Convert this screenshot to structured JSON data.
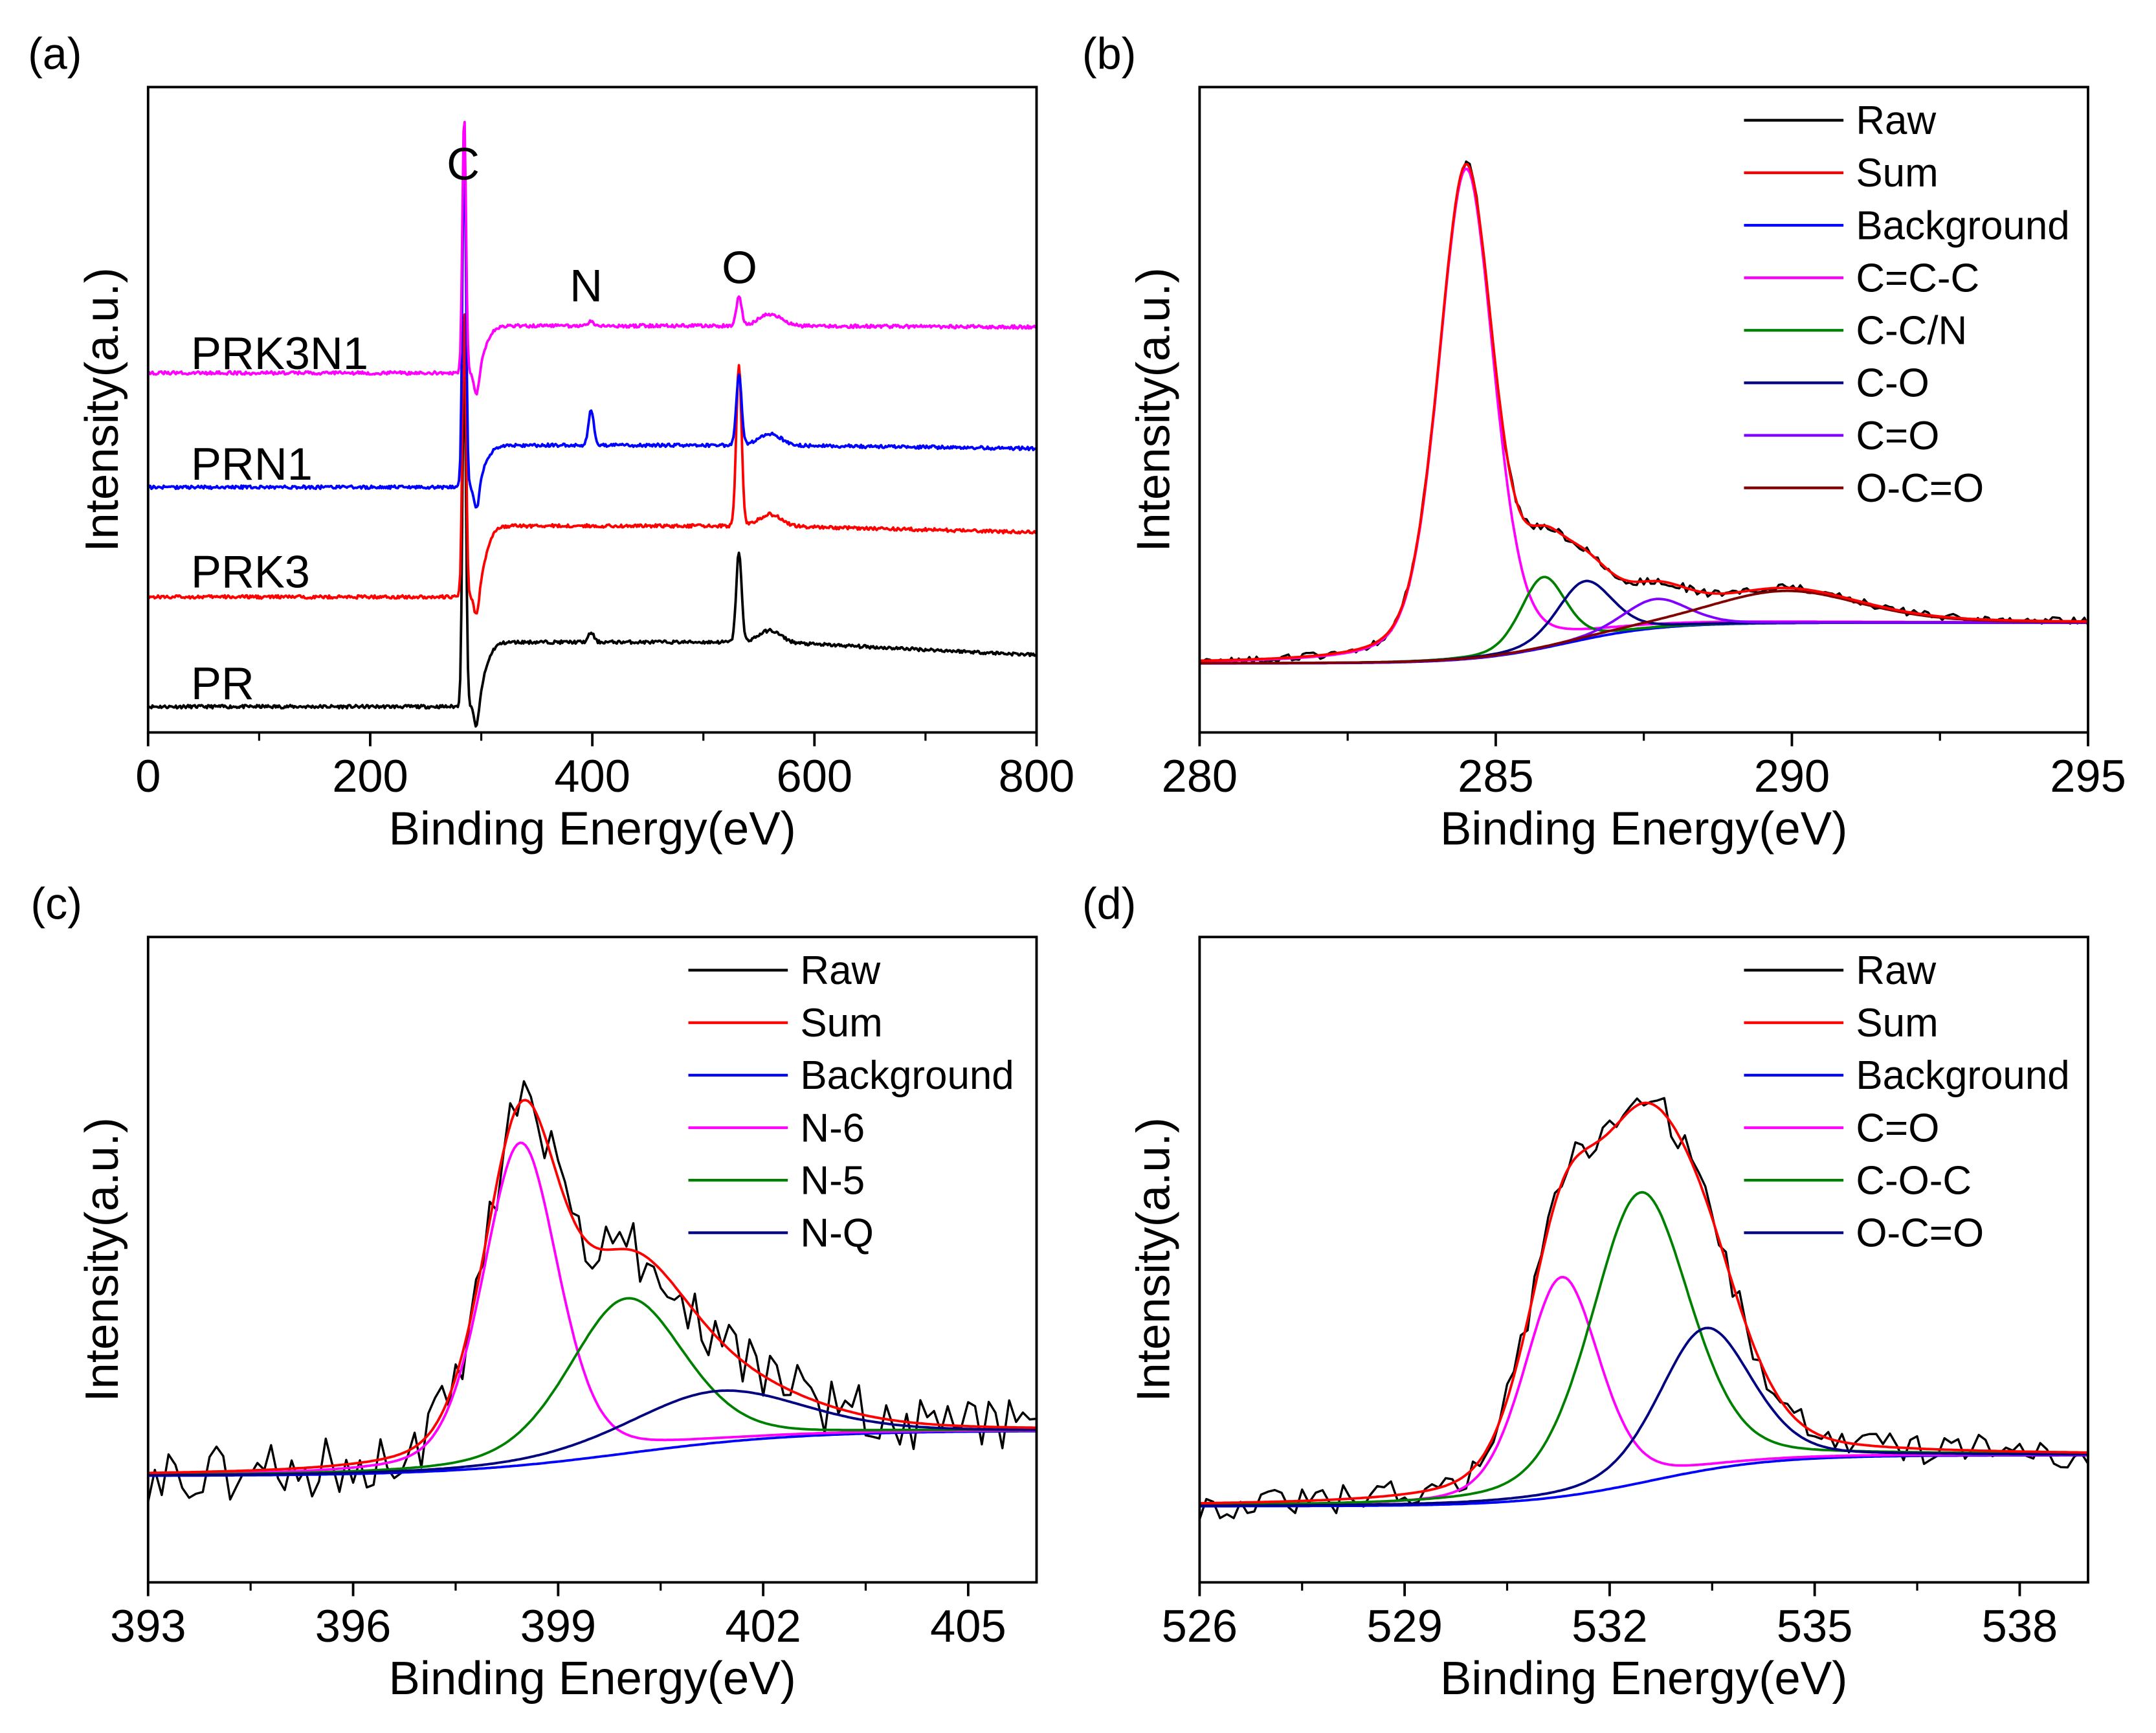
{
  "chart_data": [
    {
      "panel_label": "(a)",
      "type": "line",
      "xlabel": "Binding Energy(eV)",
      "ylabel": "Intensity(a.u.)",
      "xlim": [
        0,
        800
      ],
      "xticks": [
        0,
        200,
        400,
        600,
        800
      ],
      "xminor_step": 100,
      "ylim": [
        0,
        1
      ],
      "grid": false,
      "annotations": [
        {
          "text": "C",
          "x": 284
        },
        {
          "text": "N",
          "x": 399
        },
        {
          "text": "O",
          "x": 532
        }
      ],
      "series": [
        {
          "name": "PR",
          "color": "#000000",
          "pre": 0.04,
          "post": 0.14,
          "end": 0.12,
          "peaks": [
            {
              "center": 284.6,
              "height": 0.55
            },
            {
              "center": 399,
              "height": 0.015
            },
            {
              "center": 532,
              "height": 0.14
            }
          ]
        },
        {
          "name": "PRK3",
          "color": "#ff0000",
          "pre": 0.21,
          "post": 0.32,
          "end": 0.31,
          "peaks": [
            {
              "center": 284.6,
              "height": 0.45
            },
            {
              "center": 532,
              "height": 0.25
            }
          ]
        },
        {
          "name": "PRN1",
          "color": "#0000ff",
          "pre": 0.38,
          "post": 0.445,
          "end": 0.44,
          "peaks": [
            {
              "center": 284.6,
              "height": 0.55
            },
            {
              "center": 399,
              "height": 0.055
            },
            {
              "center": 532,
              "height": 0.11
            }
          ]
        },
        {
          "name": "PRK3N1",
          "color": "#ff00ff",
          "pre": 0.557,
          "post": 0.63,
          "end": 0.628,
          "peaks": [
            {
              "center": 284.6,
              "height": 0.4
            },
            {
              "center": 399,
              "height": 0.008
            },
            {
              "center": 532,
              "height": 0.045
            }
          ]
        }
      ]
    },
    {
      "panel_label": "(b)",
      "type": "line",
      "xlabel": "Binding Energy(eV)",
      "ylabel": "Intensity(a.u.)",
      "xlim": [
        280,
        295
      ],
      "xticks": [
        280,
        285,
        290,
        295
      ],
      "xminor_step": 2.5,
      "ylim": [
        0,
        1
      ],
      "grid": false,
      "legend": "top-right",
      "background": {
        "start": 0.107,
        "end": 0.17,
        "center": 286.2,
        "width": 0.8
      },
      "components": [
        {
          "name": "C=C-C",
          "color": "#ff00ff",
          "center": 284.5,
          "height": 0.76,
          "fwhm": 1.1
        },
        {
          "name": "C-C/N",
          "color": "#008000",
          "center": 285.8,
          "height": 0.11,
          "fwhm": 0.9
        },
        {
          "name": "C-O",
          "color": "#000080",
          "center": 286.5,
          "height": 0.09,
          "fwhm": 1.1
        },
        {
          "name": "C=O",
          "color": "#8000ff",
          "center": 287.7,
          "height": 0.045,
          "fwhm": 1.3
        },
        {
          "name": "O-C=O",
          "color": "#800000",
          "center": 289.9,
          "height": 0.05,
          "fwhm": 3.0
        }
      ],
      "raw": {
        "name": "Raw",
        "color": "#000000"
      },
      "sum": {
        "name": "Sum",
        "color": "#ff0000"
      },
      "background_series": {
        "name": "Background",
        "color": "#0000ff"
      }
    },
    {
      "panel_label": "(c)",
      "type": "line",
      "xlabel": "Binding Energy(eV)",
      "ylabel": "Intensity(a.u.)",
      "xlim": [
        393,
        406
      ],
      "xticks": [
        393,
        396,
        399,
        402,
        405
      ],
      "xminor_step": 1.5,
      "ylim": [
        0,
        1
      ],
      "grid": false,
      "legend": "top-right",
      "background": {
        "start": 0.165,
        "end": 0.235,
        "center": 400,
        "width": 1.3
      },
      "components": [
        {
          "name": "N-6",
          "color": "#ff00ff",
          "center": 398.45,
          "height": 0.5,
          "fwhm": 1.3
        },
        {
          "name": "N-5",
          "color": "#008000",
          "center": 400.0,
          "height": 0.24,
          "fwhm": 2.0
        },
        {
          "name": "N-Q",
          "color": "#000080",
          "center": 401.3,
          "height": 0.08,
          "fwhm": 3.0
        }
      ],
      "raw": {
        "name": "Raw",
        "color": "#000000"
      },
      "sum": {
        "name": "Sum",
        "color": "#ff0000"
      },
      "background_series": {
        "name": "Background",
        "color": "#0000ff"
      }
    },
    {
      "panel_label": "(d)",
      "type": "line",
      "xlabel": "Binding Energy(eV)",
      "ylabel": "Intensity(a.u.)",
      "xlim": [
        526,
        539
      ],
      "xticks": [
        526,
        529,
        532,
        535,
        538
      ],
      "xminor_step": 1.5,
      "ylim": [
        0,
        1
      ],
      "grid": false,
      "legend": "top-right",
      "background": {
        "start": 0.118,
        "end": 0.197,
        "center": 532.6,
        "width": 0.9
      },
      "components": [
        {
          "name": "C=O",
          "color": "#ff00ff",
          "center": 531.3,
          "height": 0.34,
          "fwhm": 1.3
        },
        {
          "name": "C-O-C",
          "color": "#008000",
          "center": 532.45,
          "height": 0.45,
          "fwhm": 1.7
        },
        {
          "name": "O-C=O",
          "color": "#000080",
          "center": 533.4,
          "height": 0.22,
          "fwhm": 1.6
        }
      ],
      "raw": {
        "name": "Raw",
        "color": "#000000"
      },
      "sum": {
        "name": "Sum",
        "color": "#ff0000"
      },
      "background_series": {
        "name": "Background",
        "color": "#0000ff"
      }
    }
  ]
}
